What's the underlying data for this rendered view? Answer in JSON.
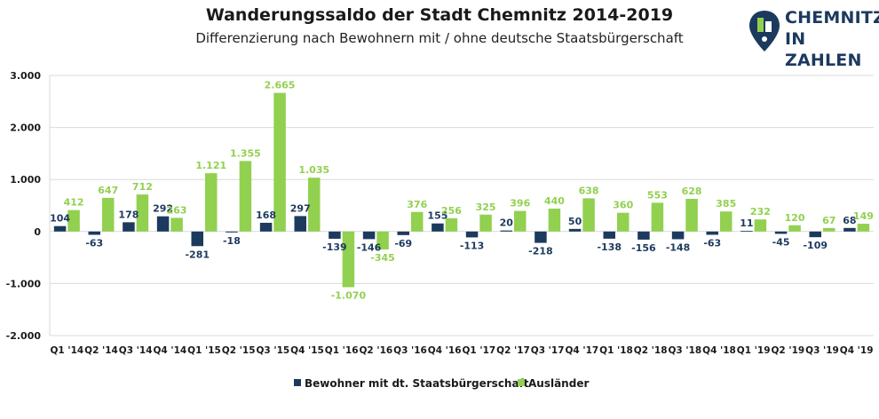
{
  "header": {
    "title": "Wanderungssaldo der Stadt Chemnitz 2014-2019",
    "subtitle": "Differenzierung nach Bewohnern mit / ohne deutsche Staatsbürgerschaft"
  },
  "logo": {
    "line1": "CHEMNITZ",
    "line2": "IN ZAHLEN"
  },
  "colors": {
    "series1": "#1c3a5e",
    "series2": "#92d050",
    "grid": "#d9d9d9"
  },
  "chart_data": {
    "type": "bar",
    "categories": [
      "Q1 '14",
      "Q2 '14",
      "Q3 '14",
      "Q4 '14",
      "Q1 '15",
      "Q2 '15",
      "Q3 '15",
      "Q4 '15",
      "Q1 '16",
      "Q2 '16",
      "Q3 '16",
      "Q4 '16",
      "Q1 '17",
      "Q2 '17",
      "Q3 '17",
      "Q4 '17",
      "Q1 '18",
      "Q2 '18",
      "Q3 '18",
      "Q4 '18",
      "Q1 '19",
      "Q2 '19",
      "Q3 '19",
      "Q4 '19"
    ],
    "series": [
      {
        "name": "Bewohner mit dt. Staatsbürgerschaft",
        "values": [
          104,
          -63,
          178,
          292,
          -281,
          -18,
          168,
          297,
          -139,
          -146,
          -69,
          155,
          -113,
          20,
          -218,
          50,
          -138,
          -156,
          -148,
          -63,
          11,
          -45,
          -109,
          68
        ],
        "labels": [
          "104",
          "-63",
          "178",
          "292",
          "-281",
          "-18",
          "168",
          "297",
          "-139",
          "-146",
          "-69",
          "155",
          "-113",
          "20",
          "-218",
          "50",
          "-138",
          "-156",
          "-148",
          "-63",
          "11",
          "-45",
          "-109",
          "68"
        ]
      },
      {
        "name": "Ausländer",
        "values": [
          412,
          647,
          712,
          263,
          1121,
          1355,
          2665,
          1035,
          -1070,
          -345,
          376,
          256,
          325,
          396,
          440,
          638,
          360,
          553,
          628,
          385,
          232,
          120,
          67,
          149
        ],
        "labels": [
          "412",
          "647",
          "712",
          "263",
          "1.121",
          "1.355",
          "2.665",
          "1.035",
          "-1.070",
          "-345",
          "376",
          "256",
          "325",
          "396",
          "440",
          "638",
          "360",
          "553",
          "628",
          "385",
          "232",
          "120",
          "67",
          "149"
        ]
      }
    ],
    "ylim": [
      -2000,
      3000
    ],
    "yticks": [
      "3.000",
      "2.000",
      "1.000",
      "0",
      "-1.000",
      "-2.000"
    ],
    "ytick_values": [
      3000,
      2000,
      1000,
      0,
      -1000,
      -2000
    ],
    "grid": true,
    "legend": "bottom"
  }
}
